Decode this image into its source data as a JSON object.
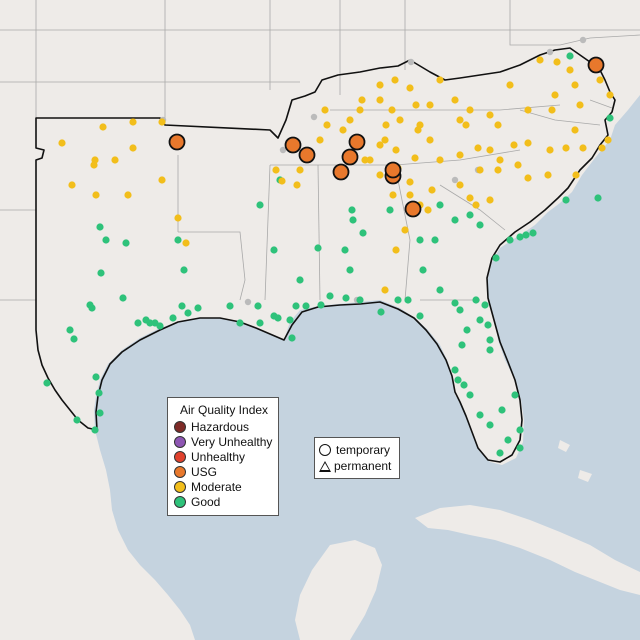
{
  "legend": {
    "title": "Air Quality Index",
    "items": [
      {
        "label": "Hazardous",
        "color": "#7e2b27"
      },
      {
        "label": "Very Unhealthy",
        "color": "#8e56b3"
      },
      {
        "label": "Unhealthy",
        "color": "#e0412d"
      },
      {
        "label": "USG",
        "color": "#e8782c"
      },
      {
        "label": "Moderate",
        "color": "#f2be1b"
      },
      {
        "label": "Good",
        "color": "#2ec27a"
      }
    ]
  },
  "type_legend": {
    "temporary": "temporary",
    "permanent": "permanent"
  },
  "colors": {
    "land": "#eeebe8",
    "water": "#c5d3df",
    "inactive_station": "#bbbbbb"
  },
  "stations": {
    "usg_count": 10
  }
}
